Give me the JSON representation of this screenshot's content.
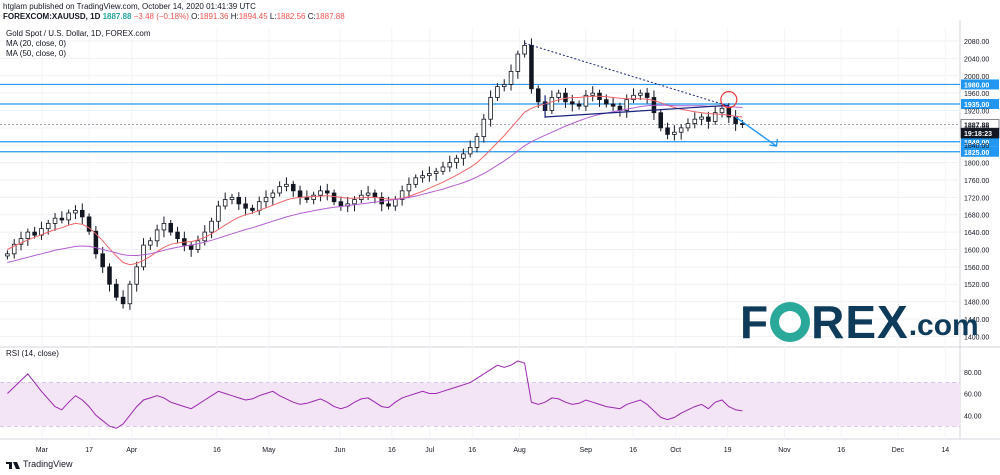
{
  "header": {
    "line1": "htglam published on TradingView.com, October 14, 2020 01:41:39 UTC",
    "symbol": "FOREXCOM:XAUUSD, 1D",
    "last": "1887.88",
    "change": "−3.48 (−0.18%)",
    "o_label": "O:",
    "o": "1891.36",
    "h_label": "H:",
    "h": "1894.45",
    "l_label": "L:",
    "l": "1882.56",
    "c_label": "C:",
    "c": "1887.88"
  },
  "legend": {
    "title": "Gold Spot / U.S. Dollar, 1D, FOREX.com",
    "ma20": "MA (20, close, 0)",
    "ma50": "MA (50, close, 0)",
    "rsi": "RSI (14, close)"
  },
  "colors": {
    "up": "#26a69a",
    "down": "#ef5350",
    "candle": "#131722",
    "ma20": "#f0646a",
    "ma50": "#b45ed0",
    "level": "#2196f3",
    "trend": "#1a237e",
    "rsi": "#9c27b0",
    "rsiBand": "#f3e5f5"
  },
  "footer": {
    "brand": "TradingView"
  },
  "logo": {
    "text1": "F",
    "text2": "REX",
    "dotcom": ".com"
  },
  "chart_data": [
    {
      "type": "line",
      "title": "Gold Spot / U.S. Dollar, 1D, FOREX.com",
      "ylim": [
        1380,
        2110
      ],
      "yticks": [
        1400,
        1440,
        1480,
        1520,
        1560,
        1600,
        1640,
        1680,
        1720,
        1760,
        1800,
        1840,
        1880,
        1920,
        1960,
        2000,
        2040,
        2080
      ],
      "x_labels": [
        "Mar",
        "17",
        "Apr",
        "16",
        "May",
        "Jun",
        "16",
        "Jul",
        "16",
        "Aug",
        "Sep",
        "16",
        "Oct",
        "19",
        "Nov",
        "16",
        "Dec",
        "14"
      ],
      "series": [
        {
          "name": "close",
          "values": [
            1590,
            1612,
            1625,
            1640,
            1633,
            1648,
            1660,
            1672,
            1668,
            1684,
            1690,
            1675,
            1642,
            1590,
            1560,
            1520,
            1490,
            1475,
            1520,
            1560,
            1610,
            1620,
            1645,
            1660,
            1640,
            1625,
            1610,
            1600,
            1620,
            1640,
            1665,
            1700,
            1715,
            1720,
            1705,
            1695,
            1690,
            1710,
            1720,
            1730,
            1745,
            1750,
            1735,
            1720,
            1715,
            1725,
            1735,
            1730,
            1710,
            1700,
            1705,
            1715,
            1725,
            1730,
            1720,
            1705,
            1700,
            1715,
            1735,
            1750,
            1765,
            1770,
            1775,
            1780,
            1790,
            1800,
            1810,
            1820,
            1835,
            1860,
            1900,
            1950,
            1975,
            1980,
            2010,
            2050,
            2070,
            1970,
            1940,
            1920,
            1950,
            1960,
            1940,
            1935,
            1930,
            1955,
            1960,
            1945,
            1935,
            1930,
            1920,
            1945,
            1955,
            1960,
            1950,
            1915,
            1880,
            1865,
            1870,
            1880,
            1890,
            1900,
            1905,
            1895,
            1915,
            1925,
            1905,
            1890,
            1887.88
          ]
        },
        {
          "name": "MA (20, close, 0)",
          "values": [
            1600,
            1608,
            1615,
            1622,
            1628,
            1634,
            1640,
            1646,
            1650,
            1656,
            1660,
            1658,
            1650,
            1636,
            1620,
            1602,
            1585,
            1570,
            1565,
            1568,
            1575,
            1584,
            1595,
            1605,
            1612,
            1615,
            1617,
            1618,
            1622,
            1628,
            1636,
            1646,
            1656,
            1666,
            1674,
            1680,
            1684,
            1690,
            1696,
            1702,
            1708,
            1714,
            1718,
            1720,
            1721,
            1722,
            1723,
            1724,
            1722,
            1720,
            1718,
            1718,
            1719,
            1720,
            1720,
            1718,
            1716,
            1716,
            1718,
            1722,
            1728,
            1734,
            1741,
            1748,
            1755,
            1763,
            1771,
            1780,
            1789,
            1800,
            1814,
            1830,
            1846,
            1862,
            1880,
            1898,
            1916,
            1925,
            1931,
            1935,
            1940,
            1945,
            1948,
            1950,
            1950,
            1952,
            1953,
            1953,
            1952,
            1950,
            1948,
            1947,
            1947,
            1947,
            1946,
            1943,
            1938,
            1932,
            1927,
            1923,
            1920,
            1917,
            1915,
            1913,
            1912,
            1911,
            1909,
            1907,
            1905
          ]
        },
        {
          "name": "MA (50, close, 0)",
          "values": [
            1570,
            1574,
            1578,
            1582,
            1586,
            1590,
            1594,
            1598,
            1601,
            1604,
            1607,
            1608,
            1607,
            1604,
            1600,
            1596,
            1592,
            1588,
            1586,
            1586,
            1588,
            1590,
            1594,
            1598,
            1602,
            1605,
            1608,
            1610,
            1613,
            1617,
            1621,
            1626,
            1631,
            1636,
            1641,
            1646,
            1650,
            1655,
            1660,
            1665,
            1670,
            1675,
            1679,
            1683,
            1686,
            1689,
            1692,
            1695,
            1697,
            1699,
            1701,
            1703,
            1705,
            1707,
            1709,
            1711,
            1713,
            1715,
            1717,
            1720,
            1723,
            1727,
            1731,
            1735,
            1739,
            1744,
            1749,
            1754,
            1760,
            1767,
            1775,
            1784,
            1794,
            1804,
            1815,
            1827,
            1839,
            1848,
            1856,
            1863,
            1870,
            1877,
            1884,
            1890,
            1896,
            1902,
            1907,
            1911,
            1914,
            1917,
            1920,
            1923,
            1926,
            1929,
            1931,
            1932,
            1932,
            1932,
            1931,
            1931,
            1931,
            1931,
            1931,
            1930,
            1930,
            1930,
            1929,
            1928,
            1927
          ]
        }
      ],
      "levels": [
        {
          "value": 1980,
          "label": "1980.00"
        },
        {
          "value": 1935,
          "label": "1935.00"
        },
        {
          "value": 1848,
          "label": "1848.00"
        },
        {
          "value": 1825,
          "label": "1825.00"
        }
      ],
      "price_tags": [
        {
          "value": 1887.88,
          "label": "1887.88"
        },
        {
          "value": 1868,
          "label": "19:18:23"
        }
      ],
      "annotations": [
        "downtrend line from 2075 high",
        "triangle base",
        "projected move to 1848 support"
      ]
    },
    {
      "type": "line",
      "title": "RSI (14, close)",
      "ylim": [
        20,
        100
      ],
      "yticks": [
        40,
        60,
        80
      ],
      "band": [
        30,
        70
      ],
      "series": [
        {
          "name": "RSI",
          "values": [
            60,
            66,
            72,
            78,
            70,
            62,
            55,
            48,
            45,
            52,
            58,
            54,
            48,
            40,
            35,
            30,
            28,
            32,
            40,
            48,
            54,
            56,
            58,
            56,
            52,
            50,
            48,
            46,
            50,
            54,
            58,
            62,
            60,
            58,
            56,
            54,
            55,
            58,
            60,
            62,
            58,
            55,
            52,
            50,
            51,
            53,
            55,
            52,
            48,
            46,
            48,
            52,
            55,
            56,
            52,
            48,
            47,
            52,
            56,
            58,
            60,
            62,
            60,
            60,
            62,
            64,
            66,
            68,
            70,
            74,
            78,
            82,
            86,
            84,
            86,
            90,
            88,
            52,
            50,
            52,
            56,
            55,
            52,
            50,
            51,
            54,
            52,
            50,
            48,
            47,
            46,
            50,
            52,
            54,
            50,
            44,
            38,
            36,
            38,
            42,
            45,
            48,
            50,
            46,
            52,
            54,
            48,
            45,
            44
          ]
        }
      ]
    }
  ]
}
